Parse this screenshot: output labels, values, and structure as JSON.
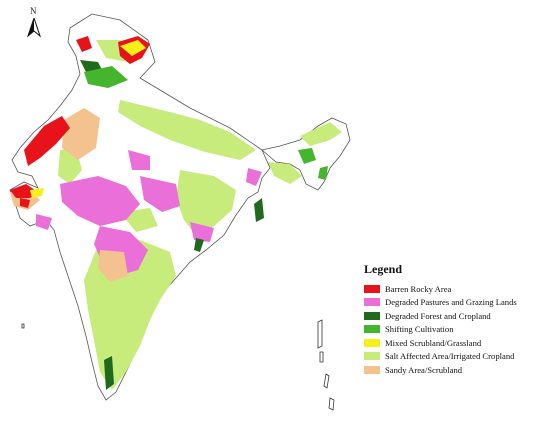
{
  "north_arrow": {
    "label": "N",
    "icon": "north-arrow-icon"
  },
  "legend": {
    "title": "Legend",
    "items": [
      {
        "label": "Barren Rocky Area",
        "color": "#e8121b"
      },
      {
        "label": "Degraded Pastures and Grazing Lands",
        "color": "#ea6fd8"
      },
      {
        "label": "Degraded Forest and Cropland",
        "color": "#1f6a1d"
      },
      {
        "label": "Shifting Cultivation",
        "color": "#44b52c"
      },
      {
        "label": "Mixed Scrubland/Grassland",
        "color": "#f4f01a"
      },
      {
        "label": "Salt Affected Area/Irrigated Cropland",
        "color": "#c8ec7c"
      },
      {
        "label": "Sandy Area/Scrubland",
        "color": "#f3c28e"
      }
    ]
  }
}
